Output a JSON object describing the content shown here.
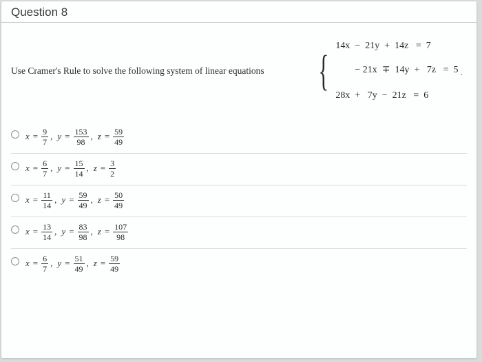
{
  "question_label": "Question 8",
  "prompt": "Use Cramer's Rule to solve the following system of linear equations",
  "system": {
    "eq1": "  14x  −  21y  +  14z   =  7",
    "eq2": "− 21x  ∓  14y  +   7z   =  5",
    "eq3": "  28x  +   7y  −  21z   =  6",
    "trail": " ."
  },
  "options": [
    {
      "x_num": "9",
      "x_den": "7",
      "y_num": "153",
      "y_den": "98",
      "z_num": "59",
      "z_den": "49"
    },
    {
      "x_num": "6",
      "x_den": "7",
      "y_num": "15",
      "y_den": "14",
      "z_num": "3",
      "z_den": "2"
    },
    {
      "x_num": "11",
      "x_den": "14",
      "y_num": "59",
      "y_den": "49",
      "z_num": "50",
      "z_den": "49"
    },
    {
      "x_num": "13",
      "x_den": "14",
      "y_num": "83",
      "y_den": "98",
      "z_num": "107",
      "z_den": "98"
    },
    {
      "x_num": "6",
      "x_den": "7",
      "y_num": "51",
      "y_den": "49",
      "z_num": "59",
      "z_den": "49"
    }
  ],
  "colors": {
    "page_bg": "#d8dcdb",
    "paper_bg": "#fdfefe",
    "divider": "#dcdedc",
    "text": "#2a2a2a",
    "radio_border": "#8d908f"
  }
}
